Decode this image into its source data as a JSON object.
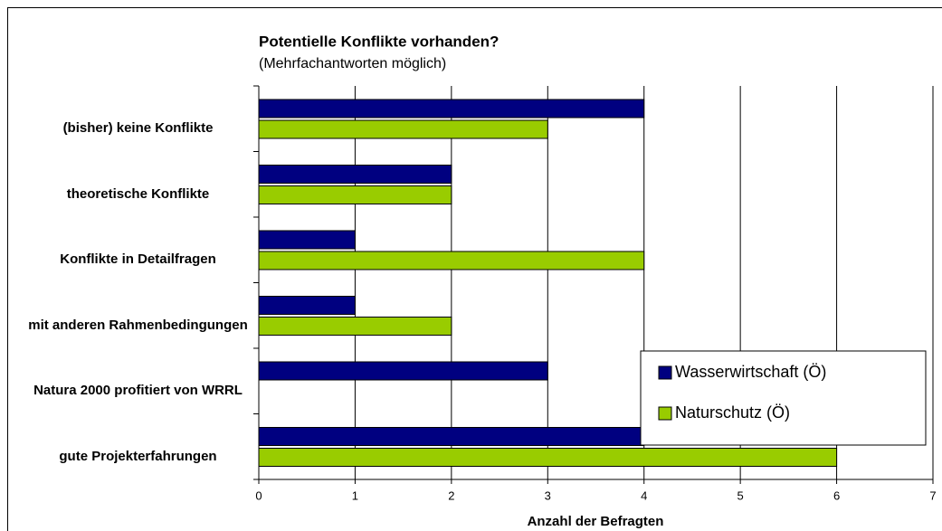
{
  "chart_data": {
    "type": "barh",
    "title": "Potentielle Konflikte vorhanden?",
    "subtitle": "(Mehrfachantworten möglich)",
    "x_label": "Anzahl der Befragten",
    "categories": [
      "(bisher) keine Konflikte",
      "theoretische Konflikte",
      "Konflikte in Detailfragen",
      "mit anderen Rahmenbedingungen",
      "Natura 2000 profitiert von WRRL",
      "gute Projekterfahrungen"
    ],
    "series": [
      {
        "name": "Wasserwirtschaft (Ö)",
        "color": "#000080",
        "values": [
          4,
          2,
          1,
          1,
          3,
          4
        ]
      },
      {
        "name": "Naturschutz (Ö)",
        "color": "#99cc00",
        "values": [
          3,
          2,
          4,
          2,
          0,
          6
        ]
      }
    ],
    "xlim": [
      0,
      7
    ],
    "xticks": [
      0,
      1,
      2,
      3,
      4,
      5,
      6,
      7
    ],
    "grid": true,
    "legend": "lower right"
  }
}
